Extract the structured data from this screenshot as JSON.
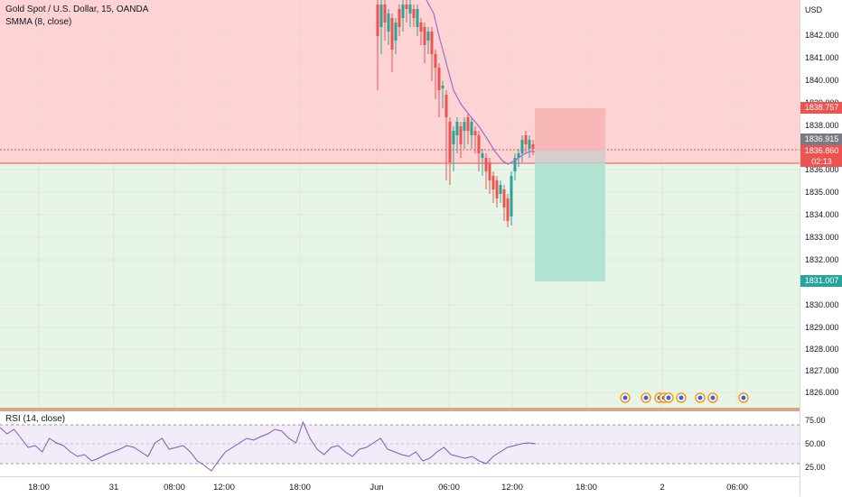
{
  "legend": {
    "symbol": "Gold Spot / U.S. Dollar, 15, OANDA",
    "indicator": "SMMA (8, close)",
    "rsi": "RSI (14, close)"
  },
  "axis": {
    "currency": "USD",
    "price_labels": [
      "1842.000",
      "1841.000",
      "1840.000",
      "1839.000",
      "1838.000",
      "1836.000",
      "1835.000",
      "1834.000",
      "1833.000",
      "1832.000",
      "1830.000",
      "1829.000",
      "1828.000",
      "1827.000",
      "1826.000"
    ],
    "rsi_labels": [
      "75.00",
      "50.00",
      "25.00"
    ]
  },
  "tags": {
    "stop": "1838.757",
    "last": "1836.915",
    "countdown_price": "1836.860",
    "countdown": "02:13",
    "target": "1831.007"
  },
  "time_labels": [
    "18:00",
    "31",
    "08:00",
    "12:00",
    "18:00",
    "Jun",
    "06:00",
    "12:00",
    "18:00",
    "2",
    "06:00"
  ],
  "colors": {
    "up": "#26a69a",
    "down": "#ef5350",
    "smma": "#9c6fd0",
    "rsi": "#7e57c2",
    "stop_zone": "#f7b8b8",
    "target_zone": "#b7e3d6",
    "upper_bg": "#fdd3d3",
    "lower_bg": "#e5f4e5"
  }
}
